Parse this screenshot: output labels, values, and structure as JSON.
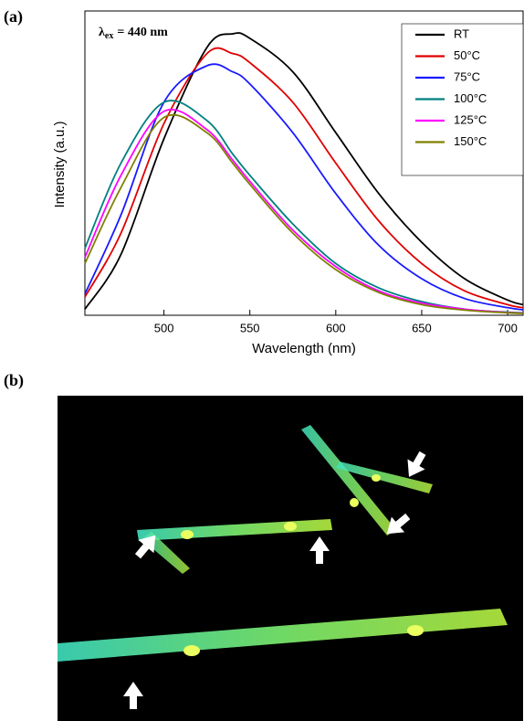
{
  "panel_labels": [
    "(a)",
    "(b)"
  ],
  "chart_data": {
    "type": "line",
    "annotation_symbol": "λ",
    "annotation_subscript": "ex",
    "annotation_text": "= 440 nm",
    "x_label": "Wavelength (nm)",
    "y_label": "Intensity (a.u.)",
    "x": [
      454,
      475,
      500,
      525,
      540,
      550,
      575,
      600,
      625,
      650,
      675,
      700,
      709
    ],
    "xlim": [
      454,
      709
    ],
    "xticks": [
      500,
      550,
      600,
      650,
      700
    ],
    "ylim": [
      0,
      1
    ],
    "legend": "upper right",
    "series": [
      {
        "name": "RT",
        "color": "#000000",
        "values": [
          0.02,
          0.2,
          0.58,
          0.88,
          0.925,
          0.91,
          0.8,
          0.6,
          0.4,
          0.24,
          0.12,
          0.05,
          0.035
        ]
      },
      {
        "name": "50°C",
        "color": "#e00000",
        "values": [
          0.06,
          0.27,
          0.63,
          0.86,
          0.86,
          0.83,
          0.7,
          0.5,
          0.31,
          0.17,
          0.08,
          0.035,
          0.025
        ]
      },
      {
        "name": "75°C",
        "color": "#1a1aff",
        "values": [
          0.07,
          0.33,
          0.7,
          0.82,
          0.8,
          0.76,
          0.6,
          0.4,
          0.23,
          0.12,
          0.055,
          0.025,
          0.018
        ]
      },
      {
        "name": "100°C",
        "color": "#008080",
        "values": [
          0.22,
          0.5,
          0.7,
          0.64,
          0.53,
          0.46,
          0.3,
          0.17,
          0.09,
          0.045,
          0.02,
          0.01,
          0.008
        ]
      },
      {
        "name": "125°C",
        "color": "#ff00ff",
        "values": [
          0.19,
          0.46,
          0.67,
          0.61,
          0.51,
          0.44,
          0.28,
          0.16,
          0.08,
          0.04,
          0.02,
          0.009,
          0.007
        ]
      },
      {
        "name": "150°C",
        "color": "#808000",
        "values": [
          0.17,
          0.42,
          0.65,
          0.6,
          0.5,
          0.43,
          0.27,
          0.15,
          0.075,
          0.035,
          0.017,
          0.008,
          0.006
        ]
      }
    ]
  }
}
